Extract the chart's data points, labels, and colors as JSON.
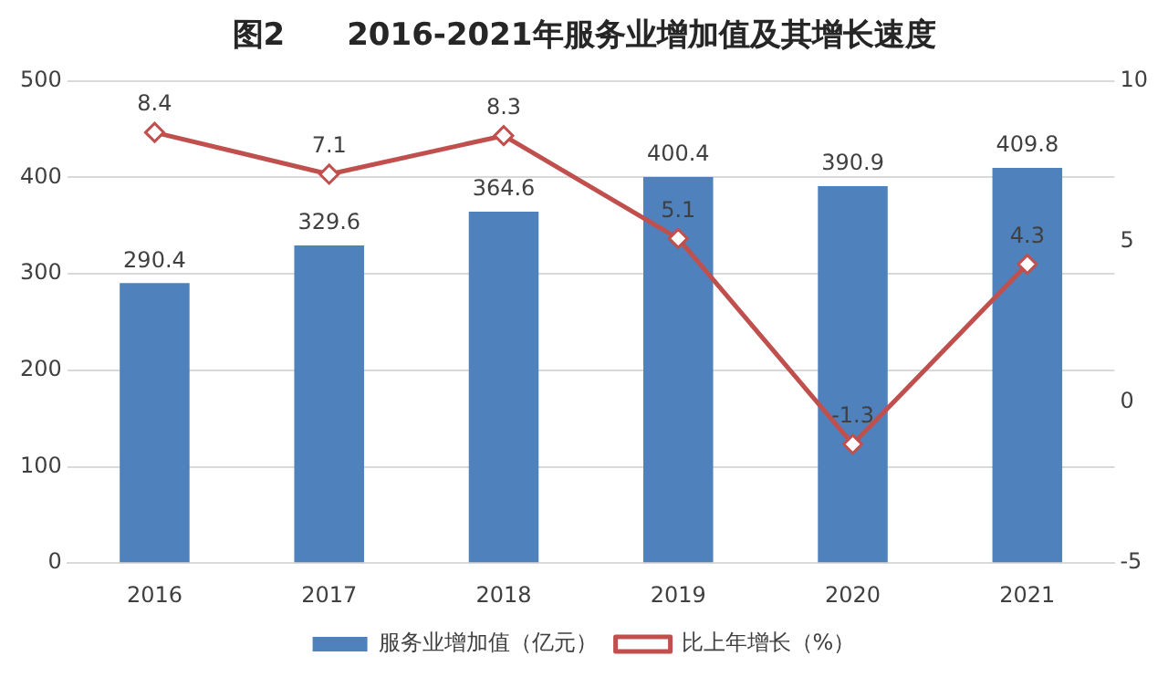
{
  "chart_data": {
    "type": "bar",
    "title": "图2　　2016-2021年服务业增加值及其增长速度",
    "categories": [
      "2016",
      "2017",
      "2018",
      "2019",
      "2020",
      "2021"
    ],
    "series": [
      {
        "name": "服务业增加值（亿元）",
        "color": "#4f81bd",
        "values": [
          290.4,
          329.6,
          364.6,
          400.4,
          390.9,
          409.8
        ]
      },
      {
        "name": "比上年增长（%）",
        "type": "line",
        "axis": "y2",
        "color": "#c0504d",
        "values": [
          8.4,
          7.1,
          8.3,
          5.1,
          -1.3,
          4.3
        ]
      }
    ],
    "ylim": [
      0,
      500
    ],
    "yticks": [
      0,
      100,
      200,
      300,
      400,
      500
    ],
    "y2lim": [
      -5,
      10
    ],
    "y2ticks": [
      -5,
      0,
      5,
      10
    ],
    "grid": "y",
    "legend": "bottom",
    "marker": "diamond",
    "data_labels": true
  }
}
